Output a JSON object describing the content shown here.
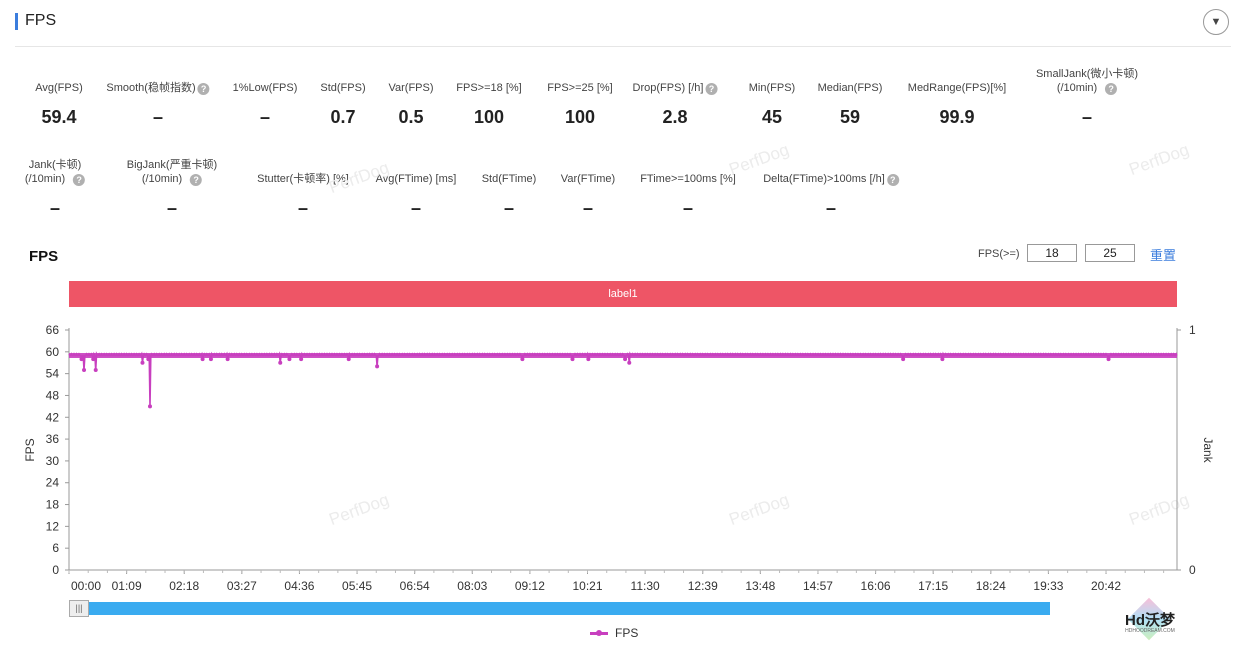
{
  "header": {
    "title": "FPS"
  },
  "metrics_row1": [
    {
      "label": "Avg(FPS)",
      "value": "59.4",
      "help": false
    },
    {
      "label": "Smooth(稳帧指数)",
      "value": "–",
      "help": true
    },
    {
      "label": "1%Low(FPS)",
      "value": "–",
      "help": false
    },
    {
      "label": "Std(FPS)",
      "value": "0.7",
      "help": false
    },
    {
      "label": "Var(FPS)",
      "value": "0.5",
      "help": false
    },
    {
      "label": "FPS>=18 [%]",
      "value": "100",
      "help": false
    },
    {
      "label": "FPS>=25 [%]",
      "value": "100",
      "help": false
    },
    {
      "label": "Drop(FPS) [/h]",
      "value": "2.8",
      "help": true
    },
    {
      "label": "Min(FPS)",
      "value": "45",
      "help": false
    },
    {
      "label": "Median(FPS)",
      "value": "59",
      "help": false
    },
    {
      "label": "MedRange(FPS)[%]",
      "value": "99.9",
      "help": false
    },
    {
      "label": "SmallJank(微小卡顿)",
      "label2": "(/10min)",
      "value": "–",
      "help": true
    }
  ],
  "metrics_row2": [
    {
      "label": "Jank(卡顿)",
      "label2": "(/10min)",
      "value": "–",
      "help": true
    },
    {
      "label": "BigJank(严重卡顿)",
      "label2": "(/10min)",
      "value": "–",
      "help": true
    },
    {
      "label": "Stutter(卡顿率) [%]",
      "value": "–",
      "help": false
    },
    {
      "label": "Avg(FTime) [ms]",
      "value": "–",
      "help": false
    },
    {
      "label": "Std(FTime)",
      "value": "–",
      "help": false
    },
    {
      "label": "Var(FTime)",
      "value": "–",
      "help": false
    },
    {
      "label": "FTime>=100ms [%]",
      "value": "–",
      "help": false
    },
    {
      "label": "Delta(FTime)>100ms [/h]",
      "value": "–",
      "help": true
    }
  ],
  "chart_section": {
    "title": "FPS",
    "filter_label": "FPS(>=)",
    "threshold1": "18",
    "threshold2": "25",
    "reset_label": "重置",
    "band_label": "label1",
    "watermark": "PerfDog",
    "legend_label": "FPS",
    "logo_text": "Hd沃梦",
    "logo_sub": "HDHOODREAM.COM"
  },
  "chart_data": {
    "type": "line",
    "ylabel": "FPS",
    "y2label": "Jank",
    "ylim": [
      0,
      66
    ],
    "y_ticks": [
      "0",
      "6",
      "12",
      "18",
      "24",
      "30",
      "36",
      "42",
      "48",
      "54",
      "60",
      "66"
    ],
    "y2lim": [
      0,
      1
    ],
    "y2_ticks": [
      "0",
      "1"
    ],
    "x_ticks": [
      "00:00",
      "01:09",
      "02:18",
      "03:27",
      "04:36",
      "05:45",
      "06:54",
      "08:03",
      "09:12",
      "10:21",
      "11:30",
      "12:39",
      "13:48",
      "14:57",
      "16:06",
      "17:15",
      "18:24",
      "19:33",
      "20:42"
    ],
    "x_range_seconds": [
      0,
      1327
    ],
    "color": "#c83fbf",
    "series": [
      {
        "name": "FPS",
        "baseline": 59,
        "dips": [
          {
            "t": 15,
            "v": 58
          },
          {
            "t": 18,
            "v": 55
          },
          {
            "t": 29,
            "v": 58
          },
          {
            "t": 32,
            "v": 55
          },
          {
            "t": 88,
            "v": 57
          },
          {
            "t": 95,
            "v": 58
          },
          {
            "t": 97,
            "v": 45
          },
          {
            "t": 160,
            "v": 58
          },
          {
            "t": 170,
            "v": 58
          },
          {
            "t": 190,
            "v": 58
          },
          {
            "t": 253,
            "v": 57
          },
          {
            "t": 264,
            "v": 58
          },
          {
            "t": 278,
            "v": 58
          },
          {
            "t": 335,
            "v": 58
          },
          {
            "t": 369,
            "v": 56
          },
          {
            "t": 543,
            "v": 58
          },
          {
            "t": 603,
            "v": 58
          },
          {
            "t": 622,
            "v": 58
          },
          {
            "t": 666,
            "v": 58
          },
          {
            "t": 671,
            "v": 57
          },
          {
            "t": 999,
            "v": 58
          },
          {
            "t": 1046,
            "v": 58
          },
          {
            "t": 1245,
            "v": 58
          }
        ]
      }
    ]
  }
}
